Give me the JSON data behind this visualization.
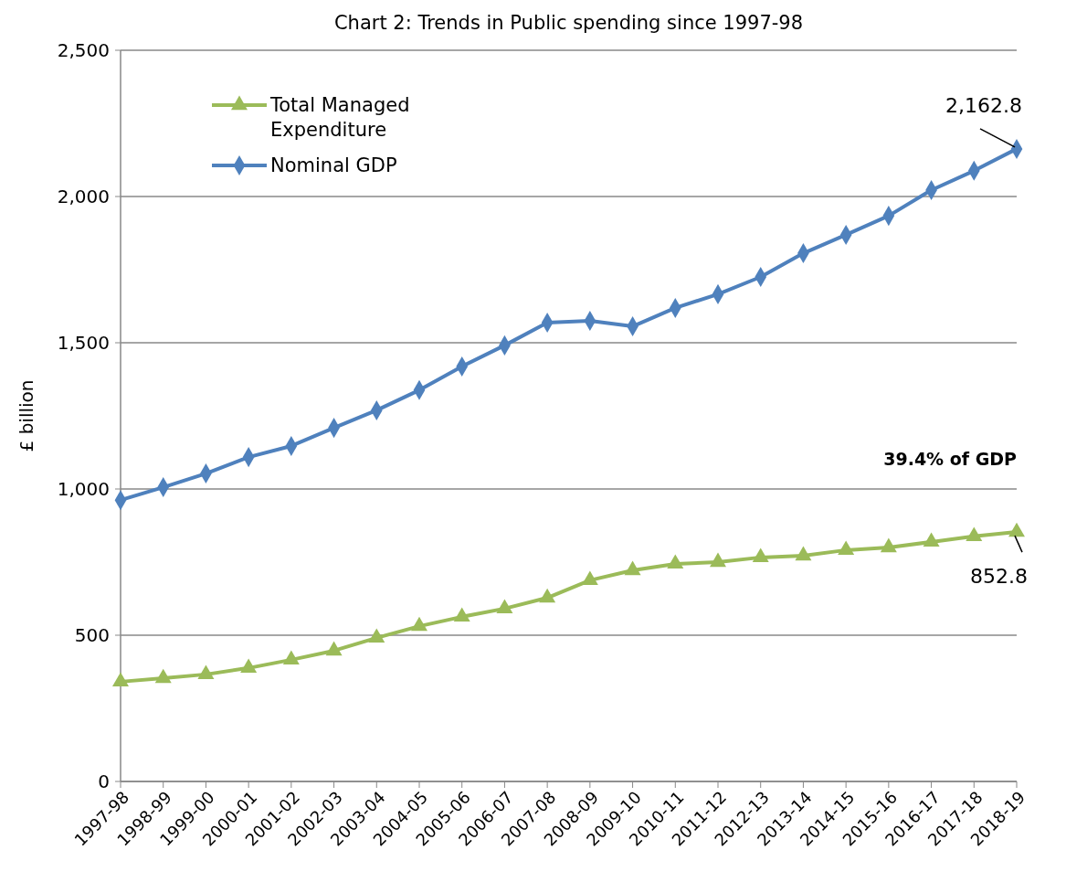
{
  "chart_data": {
    "type": "line",
    "title": "Chart 2: Trends in Public spending since 1997-98",
    "ylabel": "£ billion",
    "categories": [
      "1997-98",
      "1998-99",
      "1999-00",
      "2000-01",
      "2001-02",
      "2002-03",
      "2003-04",
      "2004-05",
      "2005-06",
      "2006-07",
      "2007-08",
      "2008-09",
      "2009-10",
      "2010-11",
      "2011-12",
      "2012-13",
      "2013-14",
      "2014-15",
      "2015-16",
      "2016-17",
      "2017-18",
      "2018-19"
    ],
    "series": [
      {
        "name": "Total Managed Expenditure",
        "color": "#9bbb59",
        "marker": "triangle",
        "values": [
          341,
          353,
          366,
          388,
          416,
          447,
          491,
          531,
          563,
          591,
          628,
          688,
          722,
          744,
          750,
          766,
          772,
          791,
          800,
          819,
          838,
          852.8
        ]
      },
      {
        "name": "Nominal GDP",
        "color": "#4f81bd",
        "marker": "diamond",
        "values": [
          962,
          1006,
          1053,
          1109,
          1147,
          1209,
          1269,
          1338,
          1419,
          1491,
          1569,
          1575,
          1556,
          1619,
          1666,
          1725,
          1806,
          1869,
          1934,
          2022,
          2088,
          2162.8
        ]
      }
    ],
    "ylim": [
      0,
      2500
    ],
    "yticks": [
      0,
      {
        "value": 500,
        "label": "500"
      },
      {
        "value": 1000,
        "label": "1,000"
      },
      {
        "value": 1500,
        "label": "1,500"
      },
      {
        "value": 2000,
        "label": "2,000"
      },
      {
        "value": 2500,
        "label": "2,500"
      }
    ],
    "grid": "y",
    "legend": "top left",
    "line_style": "solid",
    "annotations": [
      {
        "text": "2,162.8",
        "x": "2018-19",
        "y": 2162.8
      },
      {
        "text": "852.8",
        "x": "2018-19",
        "y": 852.8
      },
      "39.4% of GDP"
    ]
  }
}
